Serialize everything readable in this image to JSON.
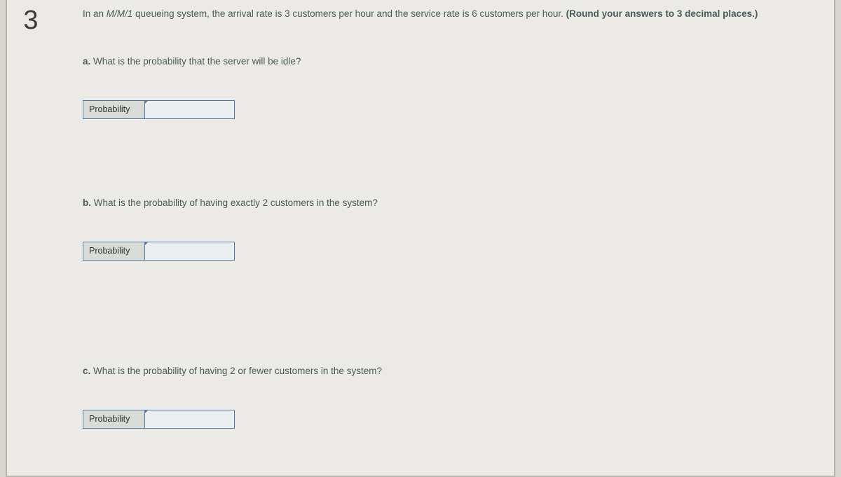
{
  "question_number": "3",
  "intro": {
    "prefix": "In an ",
    "italic": "M/M/1",
    "mid": " queueing system, the arrival rate is 3 customers per hour and the service rate is 6 customers per hour. ",
    "bold": "(Round your answers to 3 decimal places.)"
  },
  "parts": {
    "a": {
      "letter": "a.",
      "text": " What is the probability that the server will be idle?",
      "label": "Probability",
      "value": ""
    },
    "b": {
      "letter": "b.",
      "text": " What is the probability of having exactly 2 customers in the system?",
      "label": "Probability",
      "value": ""
    },
    "c": {
      "letter": "c.",
      "text": " What is the probability of having 2 or fewer customers in the system?",
      "label": "Probability",
      "value": ""
    }
  },
  "colors": {
    "page_bg": "#eceae6",
    "outer_bg": "#d8d5d0",
    "border": "#bab7b2",
    "cell_border": "#5a7aa0",
    "label_bg": "#d8dbd7",
    "input_bg": "#ebeef1",
    "text": "#4a5a5a"
  }
}
